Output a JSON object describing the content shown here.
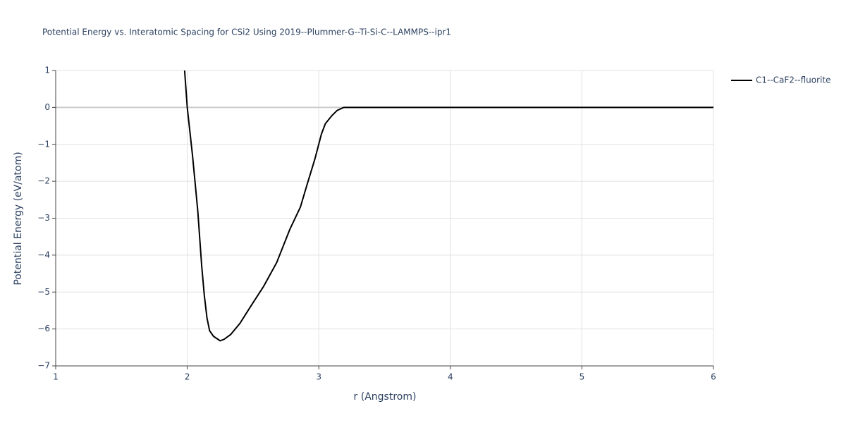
{
  "chart_data": {
    "type": "line",
    "title": "Potential Energy vs. Interatomic Spacing for CSi2 Using 2019--Plummer-G--Ti-Si-C--LAMMPS--ipr1",
    "x_label": "r (Angstrom)",
    "y_label": "Potential Energy (eV/atom)",
    "series": [
      {
        "name": "C1--CaF2--fluorite",
        "color": "#000000",
        "x": [
          1.98,
          2.0,
          2.04,
          2.08,
          2.11,
          2.13,
          2.15,
          2.17,
          2.2,
          2.25,
          2.28,
          2.33,
          2.4,
          2.48,
          2.58,
          2.68,
          2.78,
          2.86,
          2.91,
          2.97,
          3.02,
          3.05,
          3.1,
          3.14,
          3.19,
          3.5,
          4,
          4.5,
          5,
          5.5,
          6
        ],
        "values": [
          1,
          0,
          -1.3,
          -2.8,
          -4.3,
          -5.1,
          -5.7,
          -6.05,
          -6.2,
          -6.32,
          -6.28,
          -6.15,
          -5.85,
          -5.4,
          -4.85,
          -4.2,
          -3.3,
          -2.7,
          -2.1,
          -1.4,
          -0.72,
          -0.44,
          -0.22,
          -0.08,
          0,
          0,
          0,
          0,
          0,
          0,
          0
        ]
      }
    ],
    "xlim": [
      1,
      6
    ],
    "xticks": [
      1,
      2,
      3,
      4,
      5,
      6
    ],
    "ylim": [
      -7,
      1
    ],
    "yticks": [
      {
        "value": -7,
        "label": "−7"
      },
      {
        "value": -6,
        "label": "−6"
      },
      {
        "value": -5,
        "label": "−5"
      },
      {
        "value": -4,
        "label": "−4"
      },
      {
        "value": -3,
        "label": "−3"
      },
      {
        "value": -2,
        "label": "−2"
      },
      {
        "value": -1,
        "label": "−1"
      },
      0,
      1
    ],
    "grid": true,
    "legend": "right"
  }
}
